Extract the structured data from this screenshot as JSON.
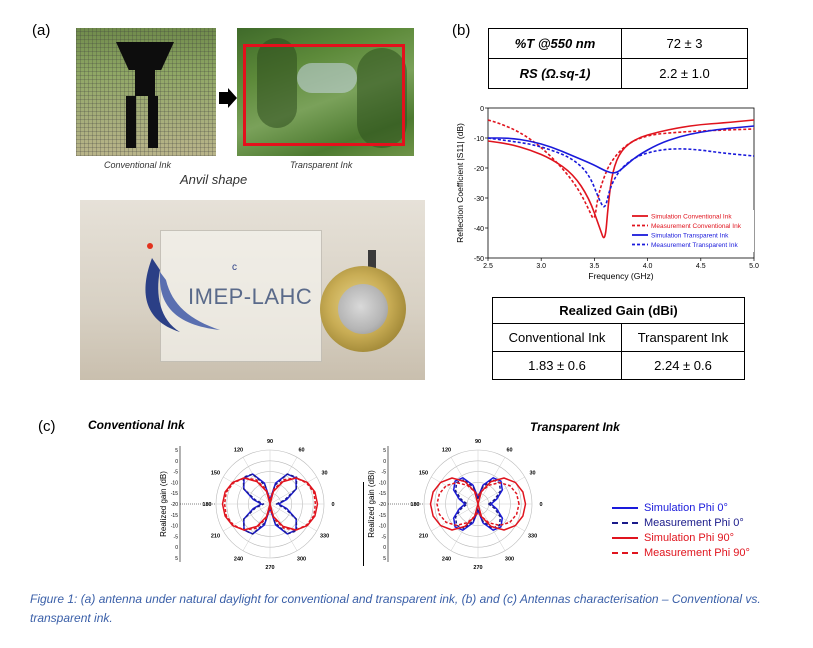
{
  "panel_a": {
    "label": "(a)",
    "conventional_label": "Conventional Ink",
    "transparent_label": "Transparent Ink",
    "shape_label": "Anvil shape",
    "logo_text": "IMEP-LAHC",
    "logo_mark": "c"
  },
  "panel_b": {
    "label": "(b)",
    "table1": {
      "row1_label": "%T @550 nm",
      "row1_value": "72 ± 3",
      "row2_label": "RS (Ω.sq-1)",
      "row2_value": "2.2 ± 1.0"
    },
    "table2": {
      "title": "Realized Gain (dBi)",
      "col1": "Conventional Ink",
      "col2": "Transparent Ink",
      "val1": "1.83 ± 0.6",
      "val2": "2.24 ± 0.6"
    }
  },
  "panel_c": {
    "label": "(c)",
    "left_title": "Conventional Ink",
    "right_title": "Transparent Ink",
    "ylabel_left": "Realized gain (dB)",
    "ylabel_right": "Realized gain (dBi)",
    "angles": [
      "90",
      "60",
      "30",
      "0",
      "330",
      "300",
      "270",
      "240",
      "210",
      "180",
      "150",
      "120"
    ],
    "radial_ticks": [
      "5",
      "0",
      "-5",
      "-10",
      "-15",
      "-20",
      "-15",
      "-10",
      "-5",
      "0",
      "5"
    ],
    "legend": [
      {
        "label": "Simulation Phi 0°",
        "color": "#1a1adb",
        "dash": false
      },
      {
        "label": "Measurement Phi 0°",
        "color": "#1a1a8a",
        "dash": true
      },
      {
        "label": "Simulation Phi 90°",
        "color": "#e0141e",
        "dash": false
      },
      {
        "label": "Measurement Phi 90°",
        "color": "#e0141e",
        "dash": true
      }
    ]
  },
  "caption": "Figure 1:  (a) antenna under natural daylight for conventional and transparent ink, (b) and (c) Antennas characterisation – Conventional vs. transparent ink.",
  "chart_data": [
    {
      "type": "line",
      "title": "",
      "xlabel": "Frequency (GHz)",
      "ylabel": "Reflection Coefficient |S11| (dB)",
      "xlim": [
        2.5,
        5.0
      ],
      "ylim": [
        -50,
        0
      ],
      "xticks": [
        "2.5",
        "3.0",
        "3.5",
        "4.0",
        "4.5",
        "5.0"
      ],
      "yticks": [
        "0",
        "-10",
        "-20",
        "-30",
        "-40",
        "-50"
      ],
      "legend_position": "bottom-right",
      "series": [
        {
          "name": "Simulation Conventional Ink",
          "color": "#e0141e",
          "dash": false,
          "x": [
            2.5,
            2.7,
            2.9,
            3.1,
            3.3,
            3.45,
            3.55,
            3.6,
            3.63,
            3.67,
            3.75,
            3.9,
            4.1,
            4.3,
            4.5,
            4.7,
            5.0
          ],
          "y": [
            -11,
            -12,
            -14,
            -17,
            -22,
            -30,
            -40,
            -45,
            -32,
            -21,
            -14,
            -10,
            -8,
            -6.5,
            -5.5,
            -5,
            -4
          ]
        },
        {
          "name": "Measurement Conventional Ink",
          "color": "#e0141e",
          "dash": true,
          "x": [
            2.5,
            2.6,
            2.8,
            3.0,
            3.2,
            3.35,
            3.45,
            3.5,
            3.53,
            3.58,
            3.65,
            3.8,
            4.0,
            4.3,
            4.6,
            5.0
          ],
          "y": [
            -4,
            -5,
            -8,
            -13,
            -20,
            -27,
            -34,
            -38,
            -30,
            -24,
            -18,
            -12,
            -9,
            -8,
            -7.5,
            -7
          ]
        },
        {
          "name": "Simulation Transparent Ink",
          "color": "#1a1adb",
          "dash": false,
          "x": [
            2.5,
            2.7,
            2.9,
            3.1,
            3.3,
            3.5,
            3.6,
            3.7,
            3.8,
            3.9,
            4.1,
            4.3,
            4.5,
            4.7,
            5.0
          ],
          "y": [
            -10,
            -10,
            -11,
            -13,
            -16,
            -19,
            -21,
            -22,
            -19,
            -16,
            -12,
            -9.5,
            -8,
            -7,
            -6
          ]
        },
        {
          "name": "Measurement Transparent Ink",
          "color": "#1a1adb",
          "dash": true,
          "x": [
            2.5,
            2.7,
            2.9,
            3.1,
            3.3,
            3.45,
            3.55,
            3.6,
            3.65,
            3.75,
            3.9,
            4.1,
            4.3,
            4.5,
            4.7,
            5.0
          ],
          "y": [
            -10,
            -11,
            -12,
            -14,
            -17,
            -22,
            -31,
            -34,
            -26,
            -20,
            -16,
            -14,
            -13.5,
            -14,
            -15,
            -16
          ]
        }
      ]
    },
    {
      "type": "polar",
      "title": "Conventional Ink",
      "rlim": [
        -20,
        5
      ],
      "series": [
        {
          "name": "Simulation Phi 0°",
          "color": "#1a1adb",
          "dash": false,
          "angles_deg": [
            0,
            15,
            30,
            45,
            60,
            75,
            90,
            105,
            120,
            135,
            150,
            165,
            180,
            195,
            210,
            225,
            240,
            255,
            270,
            285,
            300,
            315,
            330,
            345
          ],
          "r_db": [
            -16,
            -12,
            -6,
            -3,
            -4,
            -10,
            -18,
            -10,
            -4,
            -3,
            -6,
            -12,
            -16,
            -12,
            -6,
            -3,
            -4,
            -10,
            -18,
            -10,
            -4,
            -3,
            -6,
            -12
          ]
        },
        {
          "name": "Measurement Phi 0°",
          "color": "#1a1a8a",
          "dash": true,
          "angles_deg": [
            0,
            15,
            30,
            45,
            60,
            75,
            90,
            105,
            120,
            135,
            150,
            165,
            180,
            195,
            210,
            225,
            240,
            255,
            270,
            285,
            300,
            315,
            330,
            345
          ],
          "r_db": [
            -17,
            -13,
            -6,
            -2.5,
            -4,
            -11,
            -19,
            -11,
            -4,
            -2.5,
            -6,
            -13,
            -17,
            -13,
            -6,
            -3,
            -4,
            -11,
            -19,
            -11,
            -4,
            -2.5,
            -6,
            -13
          ]
        },
        {
          "name": "Simulation Phi 90°",
          "color": "#e0141e",
          "dash": false,
          "angles_deg": [
            0,
            15,
            30,
            45,
            60,
            75,
            90,
            105,
            120,
            135,
            150,
            165,
            180,
            195,
            210,
            225,
            240,
            255,
            270,
            285,
            300,
            315,
            330,
            345
          ],
          "r_db": [
            2,
            1.5,
            0,
            -3,
            -8,
            -14,
            -20,
            -14,
            -8,
            -3,
            0,
            1.5,
            2,
            1.5,
            0,
            -3,
            -8,
            -14,
            -20,
            -14,
            -8,
            -3,
            0,
            1.5
          ]
        },
        {
          "name": "Measurement Phi 90°",
          "color": "#e0141e",
          "dash": true,
          "angles_deg": [
            0,
            15,
            30,
            45,
            60,
            75,
            90,
            105,
            120,
            135,
            150,
            165,
            180,
            195,
            210,
            225,
            240,
            255,
            270,
            285,
            300,
            315,
            330,
            345
          ],
          "r_db": [
            1,
            1,
            -0.5,
            -3,
            -7,
            -13,
            -18,
            -13,
            -7,
            -3,
            -0.5,
            1,
            1,
            1,
            -0.5,
            -3,
            -7,
            -13,
            -18,
            -13,
            -7,
            -3,
            -0.5,
            1
          ]
        }
      ]
    },
    {
      "type": "polar",
      "title": "Transparent Ink",
      "rlim": [
        -20,
        5
      ],
      "series": [
        {
          "name": "Simulation Phi 0°",
          "color": "#1a1adb",
          "dash": false,
          "angles_deg": [
            0,
            15,
            30,
            45,
            60,
            75,
            90,
            105,
            120,
            135,
            150,
            165,
            180,
            195,
            210,
            225,
            240,
            255,
            270,
            285,
            300,
            315,
            330,
            345
          ],
          "r_db": [
            -14,
            -11,
            -7,
            -5,
            -6,
            -11,
            -17,
            -11,
            -6,
            -5,
            -7,
            -11,
            -14,
            -11,
            -7,
            -5,
            -6,
            -11,
            -17,
            -11,
            -6,
            -5,
            -7,
            -11
          ]
        },
        {
          "name": "Measurement Phi 0°",
          "color": "#1a1a8a",
          "dash": true,
          "angles_deg": [
            0,
            15,
            30,
            45,
            60,
            75,
            90,
            105,
            120,
            135,
            150,
            165,
            180,
            195,
            210,
            225,
            240,
            255,
            270,
            285,
            300,
            315,
            330,
            345
          ],
          "r_db": [
            -15,
            -12,
            -8,
            -6,
            -7,
            -12,
            -18,
            -12,
            -7,
            -6,
            -8,
            -12,
            -15,
            -12,
            -8,
            -6,
            -7,
            -12,
            -18,
            -12,
            -7,
            -6,
            -8,
            -12
          ]
        },
        {
          "name": "Simulation Phi 90°",
          "color": "#e0141e",
          "dash": false,
          "angles_deg": [
            0,
            15,
            30,
            45,
            60,
            75,
            90,
            105,
            120,
            135,
            150,
            165,
            180,
            195,
            210,
            225,
            240,
            255,
            270,
            285,
            300,
            315,
            330,
            345
          ],
          "r_db": [
            2,
            1.5,
            0,
            -3,
            -8,
            -14,
            -20,
            -14,
            -8,
            -3,
            0,
            1.5,
            2,
            1.5,
            0,
            -3,
            -8,
            -14,
            -20,
            -14,
            -8,
            -3,
            0,
            1.5
          ]
        },
        {
          "name": "Measurement Phi 90°",
          "color": "#e0141e",
          "dash": true,
          "angles_deg": [
            0,
            15,
            30,
            45,
            60,
            75,
            90,
            105,
            120,
            135,
            150,
            165,
            180,
            195,
            210,
            225,
            240,
            255,
            270,
            285,
            300,
            315,
            330,
            345
          ],
          "r_db": [
            -1,
            -1.5,
            -3,
            -6,
            -10,
            -14,
            -16,
            -14,
            -10,
            -6,
            -3,
            -1.5,
            -1,
            -1.5,
            -3,
            -6,
            -10,
            -14,
            -16,
            -14,
            -10,
            -6,
            -3,
            -1.5
          ]
        }
      ]
    }
  ]
}
